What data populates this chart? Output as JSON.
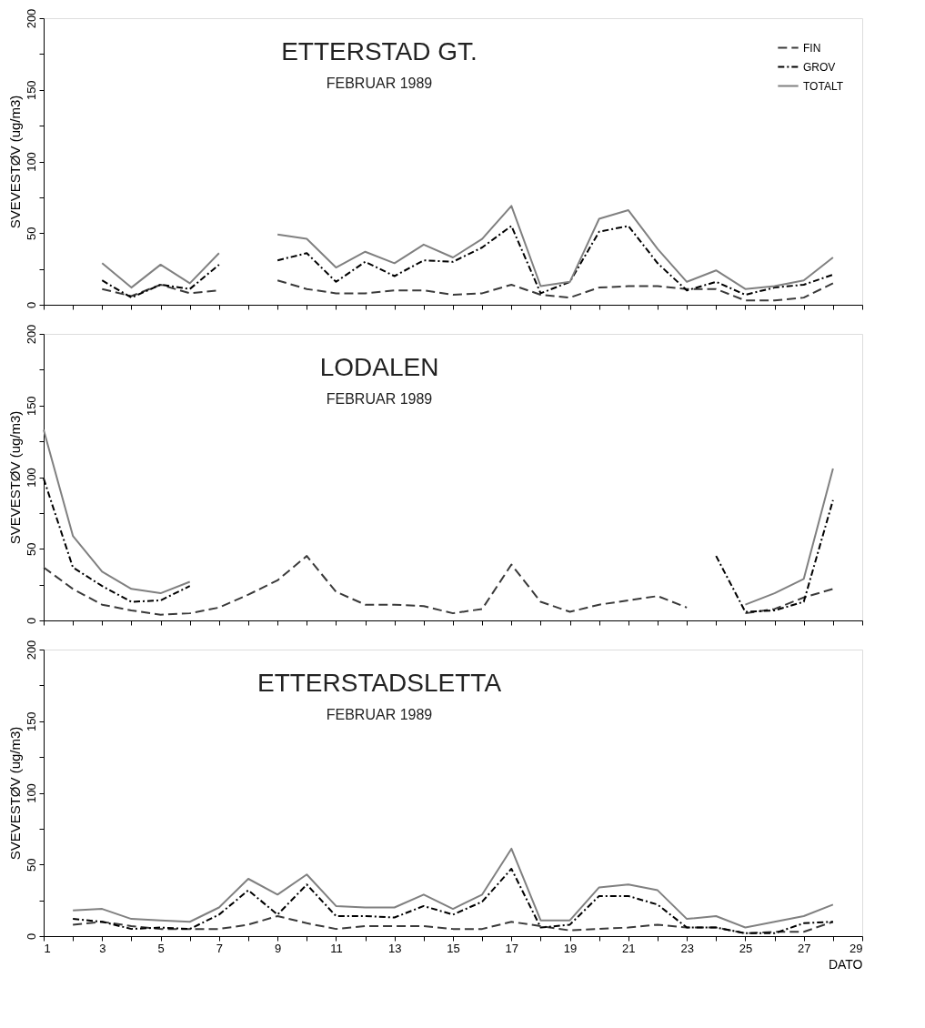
{
  "chart_data": [
    {
      "type": "line",
      "title": "ETTERSTAD GT.",
      "subtitle": "FEBRUAR 1989",
      "ylabel": "SVEVESTØV (ug/m3)",
      "x": [
        3,
        4,
        5,
        6,
        7,
        8,
        9,
        10,
        11,
        12,
        13,
        14,
        15,
        16,
        17,
        18,
        19,
        20,
        21,
        22,
        23,
        24,
        25,
        26,
        27,
        28
      ],
      "series": [
        {
          "name": "FIN",
          "color": "#3a3a3a",
          "line_style": "dashed",
          "values": [
            11,
            6,
            14,
            8,
            10,
            null,
            17,
            11,
            8,
            8,
            10,
            10,
            7,
            8,
            14,
            7,
            5,
            12,
            13,
            13,
            11,
            11,
            3,
            3,
            5,
            15
          ]
        },
        {
          "name": "GROV",
          "color": "#000000",
          "line_style": "dotted",
          "values": [
            17,
            5,
            14,
            11,
            28,
            null,
            31,
            36,
            16,
            30,
            20,
            31,
            30,
            40,
            55,
            8,
            16,
            51,
            55,
            29,
            10,
            16,
            7,
            12,
            14,
            21
          ]
        },
        {
          "name": "TOTALT",
          "color": "#808080",
          "line_style": "solid",
          "values": [
            29,
            12,
            28,
            15,
            36,
            null,
            49,
            46,
            26,
            37,
            29,
            42,
            33,
            46,
            69,
            13,
            16,
            60,
            66,
            39,
            16,
            24,
            11,
            13,
            17,
            33
          ]
        }
      ],
      "legend": "top right",
      "tick_labels": "y",
      "xlim": [
        1,
        29
      ],
      "xticks": [
        1,
        {
          "value": 2,
          "label": null
        },
        3,
        {
          "value": 4,
          "label": null
        },
        5,
        {
          "value": 6,
          "label": null
        },
        7,
        {
          "value": 8,
          "label": null
        },
        9,
        {
          "value": 10,
          "label": null
        },
        11,
        {
          "value": 12,
          "label": null
        },
        13,
        {
          "value": 14,
          "label": null
        },
        15,
        {
          "value": 16,
          "label": null
        },
        17,
        {
          "value": 18,
          "label": null
        },
        19,
        {
          "value": 20,
          "label": null
        },
        21,
        {
          "value": 22,
          "label": null
        },
        23,
        {
          "value": 24,
          "label": null
        },
        25,
        {
          "value": 26,
          "label": null
        },
        27,
        {
          "value": 28,
          "label": null
        },
        29
      ],
      "ylim": [
        0,
        200
      ],
      "yticks": [
        0,
        {
          "value": 25,
          "label": null
        },
        50,
        {
          "value": 75,
          "label": null
        },
        100,
        {
          "value": 125,
          "label": null
        },
        150,
        {
          "value": 175,
          "label": null
        },
        200
      ]
    },
    {
      "type": "line",
      "title": "LODALEN",
      "subtitle": "FEBRUAR 1989",
      "ylabel": "SVEVESTØV (ug/m3)",
      "x": [
        1,
        2,
        3,
        4,
        5,
        6,
        7,
        8,
        9,
        10,
        11,
        12,
        13,
        14,
        15,
        16,
        17,
        18,
        19,
        20,
        21,
        22,
        23,
        24,
        25,
        26,
        27,
        28
      ],
      "series": [
        {
          "color": "#3a3a3a",
          "line_style": "dashed",
          "values": [
            37,
            22,
            11,
            7,
            4,
            5,
            9,
            18,
            28,
            45,
            20,
            11,
            11,
            10,
            5,
            8,
            39,
            13,
            6,
            11,
            14,
            17,
            9,
            null,
            5,
            8,
            16,
            22
          ]
        },
        {
          "color": "#000000",
          "line_style": "dotted",
          "values": [
            99,
            37,
            24,
            13,
            14,
            24,
            null,
            null,
            null,
            null,
            null,
            null,
            null,
            null,
            null,
            null,
            null,
            null,
            null,
            null,
            null,
            null,
            null,
            45,
            6,
            7,
            13,
            84
          ]
        },
        {
          "color": "#808080",
          "line_style": "solid",
          "values": [
            133,
            59,
            34,
            22,
            19,
            27,
            null,
            null,
            null,
            null,
            null,
            null,
            null,
            null,
            null,
            null,
            null,
            null,
            null,
            null,
            null,
            null,
            null,
            null,
            11,
            19,
            29,
            106
          ]
        }
      ],
      "tick_labels": "y",
      "xlim": [
        1,
        29
      ],
      "xticks": [
        1,
        {
          "value": 2,
          "label": null
        },
        3,
        {
          "value": 4,
          "label": null
        },
        5,
        {
          "value": 6,
          "label": null
        },
        7,
        {
          "value": 8,
          "label": null
        },
        9,
        {
          "value": 10,
          "label": null
        },
        11,
        {
          "value": 12,
          "label": null
        },
        13,
        {
          "value": 14,
          "label": null
        },
        15,
        {
          "value": 16,
          "label": null
        },
        17,
        {
          "value": 18,
          "label": null
        },
        19,
        {
          "value": 20,
          "label": null
        },
        21,
        {
          "value": 22,
          "label": null
        },
        23,
        {
          "value": 24,
          "label": null
        },
        25,
        {
          "value": 26,
          "label": null
        },
        27,
        {
          "value": 28,
          "label": null
        },
        29
      ],
      "ylim": [
        0,
        200
      ],
      "yticks": [
        0,
        {
          "value": 25,
          "label": null
        },
        50,
        {
          "value": 75,
          "label": null
        },
        100,
        {
          "value": 125,
          "label": null
        },
        150,
        {
          "value": 175,
          "label": null
        },
        200
      ]
    },
    {
      "type": "line",
      "title": "ETTERSTADSLETTA",
      "subtitle": "FEBRUAR 1989",
      "ylabel": "SVEVESTØV (ug/m3)",
      "xlabel": "DATO",
      "x": [
        2,
        3,
        4,
        5,
        6,
        7,
        8,
        9,
        10,
        11,
        12,
        13,
        14,
        15,
        16,
        17,
        18,
        19,
        20,
        21,
        22,
        23,
        24,
        25,
        26,
        27,
        28
      ],
      "series": [
        {
          "color": "#3a3a3a",
          "line_style": "dashed",
          "values": [
            8,
            10,
            7,
            5,
            5,
            5,
            8,
            14,
            9,
            5,
            7,
            7,
            7,
            5,
            5,
            10,
            7,
            4,
            5,
            6,
            8,
            6,
            6,
            2,
            3,
            3,
            10
          ]
        },
        {
          "color": "#000000",
          "line_style": "dotted",
          "values": [
            12,
            10,
            5,
            6,
            5,
            15,
            32,
            15,
            36,
            14,
            14,
            13,
            21,
            15,
            24,
            47,
            6,
            8,
            28,
            28,
            22,
            6,
            6,
            2,
            2,
            9,
            10
          ]
        },
        {
          "color": "#808080",
          "line_style": "solid",
          "values": [
            18,
            19,
            12,
            11,
            10,
            20,
            40,
            29,
            43,
            21,
            20,
            20,
            29,
            19,
            29,
            61,
            11,
            11,
            34,
            36,
            32,
            12,
            14,
            6,
            10,
            14,
            22
          ]
        }
      ],
      "xlim": [
        1,
        29
      ],
      "xticks": [
        1,
        {
          "value": 2,
          "label": null
        },
        3,
        {
          "value": 4,
          "label": null
        },
        5,
        {
          "value": 6,
          "label": null
        },
        7,
        {
          "value": 8,
          "label": null
        },
        9,
        {
          "value": 10,
          "label": null
        },
        11,
        {
          "value": 12,
          "label": null
        },
        13,
        {
          "value": 14,
          "label": null
        },
        15,
        {
          "value": 16,
          "label": null
        },
        17,
        {
          "value": 18,
          "label": null
        },
        19,
        {
          "value": 20,
          "label": null
        },
        21,
        {
          "value": 22,
          "label": null
        },
        23,
        {
          "value": 24,
          "label": null
        },
        25,
        {
          "value": 26,
          "label": null
        },
        27,
        {
          "value": 28,
          "label": null
        },
        29
      ],
      "ylim": [
        0,
        200
      ],
      "yticks": [
        0,
        {
          "value": 25,
          "label": null
        },
        50,
        {
          "value": 75,
          "label": null
        },
        100,
        {
          "value": 125,
          "label": null
        },
        150,
        {
          "value": 175,
          "label": null
        },
        200
      ]
    }
  ]
}
